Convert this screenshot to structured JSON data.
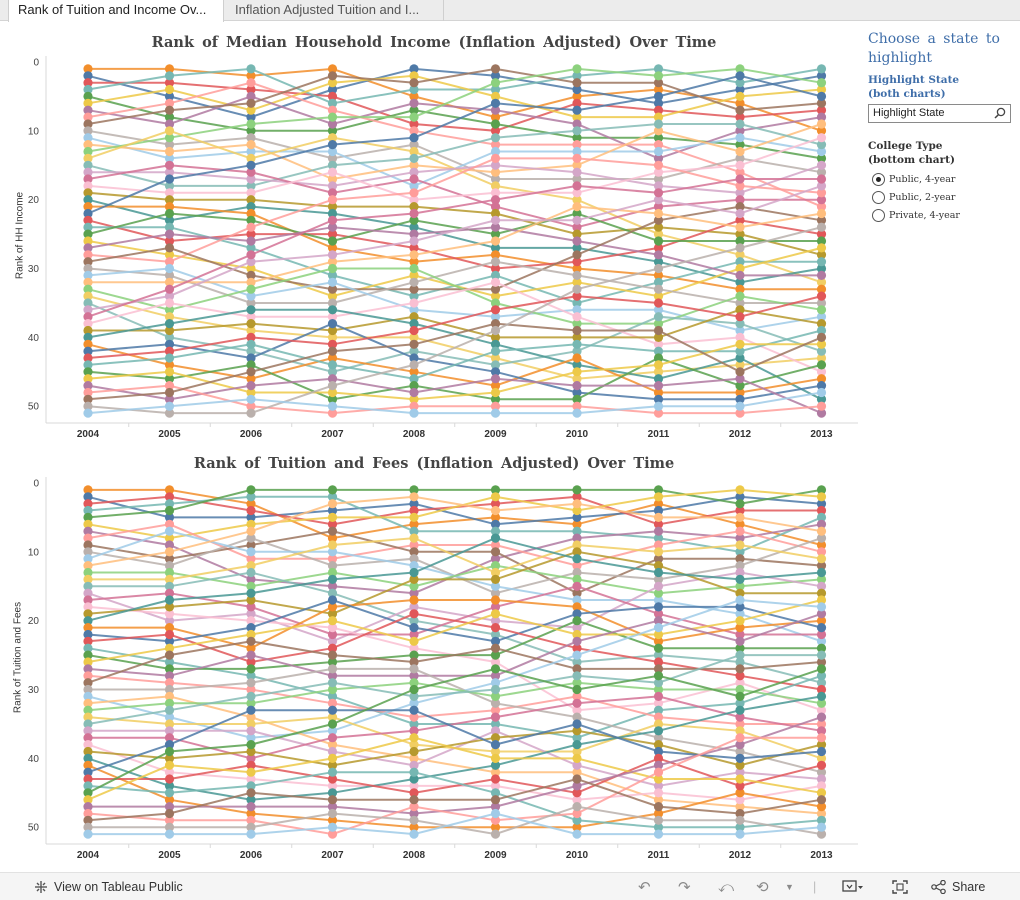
{
  "tabs": [
    {
      "label": "Rank of Tuition and Income Ov..."
    },
    {
      "label": "Inflation Adjusted Tuition and I..."
    }
  ],
  "sidepanel": {
    "title": "Choose a state to highlight",
    "highlight_label_1": "Highlight State",
    "highlight_label_2": "(both charts)",
    "search_placeholder": "Highlight State",
    "college_label_1": "College Type",
    "college_label_2": "(bottom chart)",
    "options": [
      {
        "label": "Public, 4-year",
        "checked": true
      },
      {
        "label": "Public, 2-year",
        "checked": false
      },
      {
        "label": "Private, 4-year",
        "checked": false
      }
    ]
  },
  "toolbar": {
    "view_label": "View on Tableau Public",
    "share_label": "Share"
  },
  "palette": [
    "#f28e2b",
    "#4e79a7",
    "#e15759",
    "#76b7b2",
    "#59a14f",
    "#edc948",
    "#b07aa1",
    "#ff9d9a",
    "#9c755f",
    "#bab0ac",
    "#a0cbe8",
    "#ffbe7d",
    "#8cd17d",
    "#f1ce63",
    "#86bcb6",
    "#d4a6c8",
    "#d37295",
    "#fabfd2",
    "#b6992d",
    "#499894"
  ],
  "chart_data": [
    {
      "type": "line",
      "title": "Rank of Median Household Income (Inflation Adjusted) Over Time",
      "xlabel": "",
      "ylabel": "Rank of HH Income",
      "x": [
        2004,
        2005,
        2006,
        2007,
        2008,
        2009,
        2010,
        2011,
        2012,
        2013
      ],
      "ylim": [
        0,
        52
      ],
      "yticks": [
        0,
        10,
        20,
        30,
        40,
        50
      ],
      "y_reversed": true,
      "grid": false,
      "series_count": 51,
      "note": "51 state series (one line per state); individual state values are not legible in the screenshot"
    },
    {
      "type": "line",
      "title": "Rank of Tuition and Fees (Inflation Adjusted) Over Time",
      "xlabel": "",
      "ylabel": "Rank of Tuition and Fees",
      "x": [
        2004,
        2005,
        2006,
        2007,
        2008,
        2009,
        2010,
        2011,
        2012,
        2013
      ],
      "ylim": [
        0,
        52
      ],
      "yticks": [
        0,
        10,
        20,
        30,
        40,
        50
      ],
      "y_reversed": true,
      "grid": false,
      "series_count": 51,
      "note": "51 state series (one line per state); individual state values are not legible in the screenshot"
    }
  ]
}
